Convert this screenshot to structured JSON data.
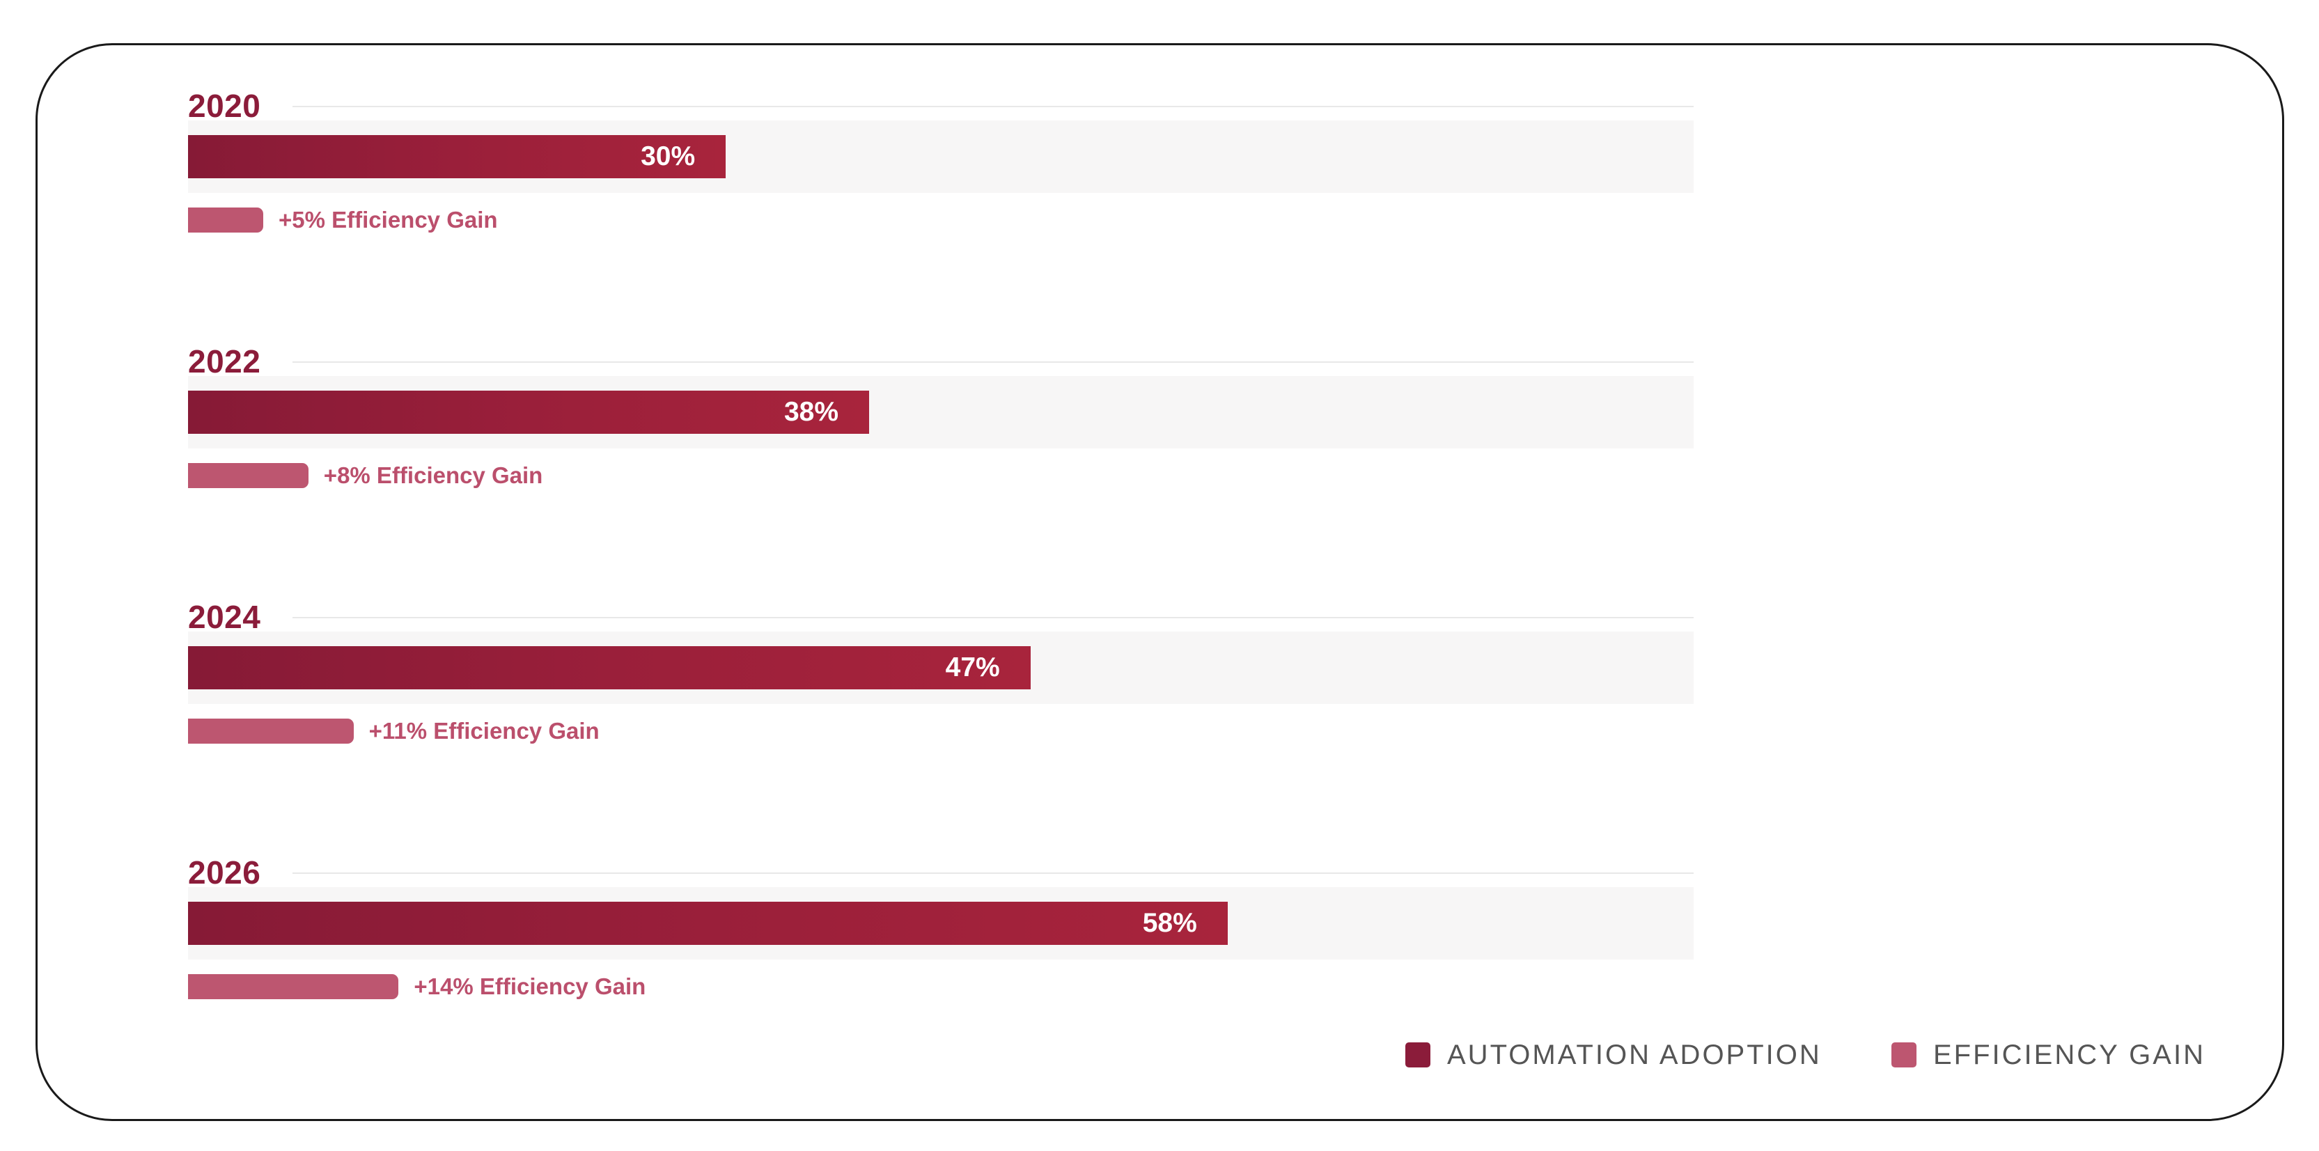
{
  "chart_data": {
    "type": "bar",
    "orientation": "horizontal",
    "categories": [
      "2020",
      "2022",
      "2024",
      "2026"
    ],
    "series": [
      {
        "name": "AUTOMATION ADOPTION",
        "values": [
          30,
          38,
          47,
          58
        ],
        "labels": [
          "30%",
          "38%",
          "47%",
          "58%"
        ],
        "color": "#8b1c3a"
      },
      {
        "name": "EFFICIENCY GAIN",
        "values": [
          5,
          8,
          11,
          14
        ],
        "labels": [
          "+5% Efficiency Gain",
          "+8% Efficiency Gain",
          "+11% Efficiency Gain",
          "+14% Efficiency Gain"
        ],
        "color": "#bd5670"
      }
    ],
    "xlim": [
      0,
      100
    ],
    "legend_position": "bottom-right",
    "grid": false
  },
  "groups": [
    {
      "year": "2020",
      "adoption_label": "30%",
      "gain_label": "+5% Efficiency Gain"
    },
    {
      "year": "2022",
      "adoption_label": "38%",
      "gain_label": "+8% Efficiency Gain"
    },
    {
      "year": "2024",
      "adoption_label": "47%",
      "gain_label": "+11% Efficiency Gain"
    },
    {
      "year": "2026",
      "adoption_label": "58%",
      "gain_label": "+14% Efficiency Gain"
    }
  ],
  "legend": [
    {
      "label": "AUTOMATION ADOPTION",
      "color": "#8b1c3a"
    },
    {
      "label": "EFFICIENCY GAIN",
      "color": "#bd5670"
    }
  ]
}
